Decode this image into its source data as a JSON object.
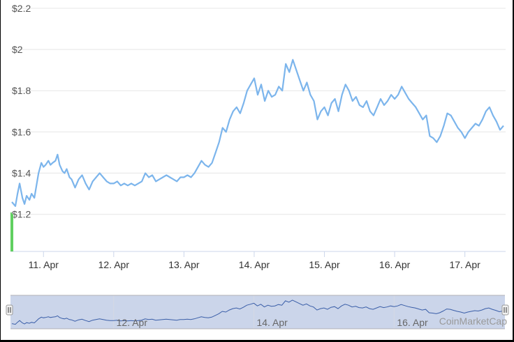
{
  "chart_data": {
    "type": "line",
    "currency_prefix": "$",
    "y_ticks": [
      "$2.2",
      "$2",
      "$1.8",
      "$1.6",
      "$1.4",
      "$1.2"
    ],
    "y_tick_values": [
      2.2,
      2.0,
      1.8,
      1.6,
      1.4,
      1.2
    ],
    "ylim": [
      1.02,
      2.24
    ],
    "x_ticks": [
      "11. Apr",
      "12. Apr",
      "13. Apr",
      "14. Apr",
      "15. Apr",
      "16. Apr",
      "17. Apr"
    ],
    "x_tick_values": [
      11,
      12,
      13,
      14,
      15,
      16,
      17
    ],
    "xlim": [
      10.53,
      17.58
    ],
    "navigator_ticks": [
      "12. Apr",
      "14. Apr",
      "16. Apr"
    ],
    "navigator_tick_values": [
      12,
      14,
      16
    ],
    "watermark": "CoinMarketCap",
    "line_color": "#7cb5ec",
    "navigator_line_color": "#3a5ea8",
    "volume_color": "#5fcf5f",
    "series": [
      {
        "x": [
          10.55,
          10.6,
          10.63,
          10.66,
          10.7,
          10.73,
          10.76,
          10.8,
          10.83,
          10.87,
          10.9,
          10.93,
          10.97,
          11.0,
          11.03,
          11.07,
          11.1,
          11.13,
          11.17,
          11.2,
          11.23,
          11.27,
          11.3,
          11.33,
          11.37,
          11.4,
          11.45,
          11.5,
          11.55,
          11.6,
          11.65,
          11.7,
          11.75,
          11.8,
          11.85,
          11.9,
          11.95,
          12.0,
          12.05,
          12.1,
          12.15,
          12.2,
          12.25,
          12.3,
          12.35,
          12.4,
          12.45,
          12.5,
          12.55,
          12.6,
          12.65,
          12.7,
          12.75,
          12.8,
          12.85,
          12.9,
          12.95,
          13.0,
          13.05,
          13.1,
          13.15,
          13.2,
          13.25,
          13.3,
          13.35,
          13.4,
          13.45,
          13.5,
          13.55,
          13.6,
          13.65,
          13.7,
          13.75,
          13.8,
          13.85,
          13.9,
          13.95,
          14.0,
          14.05,
          14.1,
          14.15,
          14.2,
          14.25,
          14.3,
          14.35,
          14.4,
          14.45,
          14.5,
          14.55,
          14.6,
          14.65,
          14.7,
          14.75,
          14.8,
          14.85,
          14.9,
          14.95,
          15.0,
          15.05,
          15.1,
          15.15,
          15.2,
          15.25,
          15.3,
          15.35,
          15.4,
          15.45,
          15.5,
          15.55,
          15.6,
          15.65,
          15.7,
          15.75,
          15.8,
          15.85,
          15.9,
          15.95,
          16.0,
          16.05,
          16.1,
          16.15,
          16.2,
          16.25,
          16.3,
          16.35,
          16.4,
          16.45,
          16.5,
          16.55,
          16.6,
          16.65,
          16.7,
          16.75,
          16.8,
          16.85,
          16.9,
          16.95,
          17.0,
          17.05,
          17.1,
          17.15,
          17.2,
          17.25,
          17.3,
          17.35,
          17.4,
          17.45,
          17.5,
          17.55
        ],
        "y": [
          1.26,
          1.24,
          1.3,
          1.35,
          1.28,
          1.25,
          1.29,
          1.27,
          1.3,
          1.28,
          1.34,
          1.4,
          1.45,
          1.43,
          1.44,
          1.46,
          1.44,
          1.45,
          1.46,
          1.49,
          1.44,
          1.41,
          1.4,
          1.42,
          1.38,
          1.37,
          1.33,
          1.37,
          1.39,
          1.35,
          1.32,
          1.36,
          1.38,
          1.4,
          1.38,
          1.36,
          1.35,
          1.35,
          1.36,
          1.34,
          1.35,
          1.34,
          1.35,
          1.34,
          1.35,
          1.36,
          1.4,
          1.38,
          1.39,
          1.36,
          1.37,
          1.38,
          1.39,
          1.38,
          1.37,
          1.36,
          1.38,
          1.38,
          1.39,
          1.38,
          1.4,
          1.43,
          1.46,
          1.44,
          1.43,
          1.45,
          1.5,
          1.55,
          1.62,
          1.6,
          1.66,
          1.7,
          1.72,
          1.69,
          1.74,
          1.8,
          1.83,
          1.86,
          1.78,
          1.83,
          1.75,
          1.8,
          1.77,
          1.78,
          1.82,
          1.8,
          1.93,
          1.89,
          1.95,
          1.9,
          1.85,
          1.8,
          1.84,
          1.78,
          1.75,
          1.66,
          1.7,
          1.72,
          1.68,
          1.74,
          1.76,
          1.7,
          1.78,
          1.83,
          1.8,
          1.75,
          1.77,
          1.73,
          1.72,
          1.75,
          1.7,
          1.68,
          1.72,
          1.76,
          1.73,
          1.75,
          1.78,
          1.76,
          1.78,
          1.82,
          1.79,
          1.76,
          1.74,
          1.72,
          1.69,
          1.66,
          1.68,
          1.58,
          1.57,
          1.55,
          1.58,
          1.63,
          1.69,
          1.68,
          1.65,
          1.62,
          1.6,
          1.57,
          1.6,
          1.62,
          1.64,
          1.63,
          1.66,
          1.7,
          1.72,
          1.68,
          1.65,
          1.61,
          1.63
        ]
      }
    ],
    "volume_bars": [
      {
        "x": 10.54,
        "height_frac": 1.0
      },
      {
        "x": 10.56,
        "height_frac": 0.96
      }
    ]
  }
}
